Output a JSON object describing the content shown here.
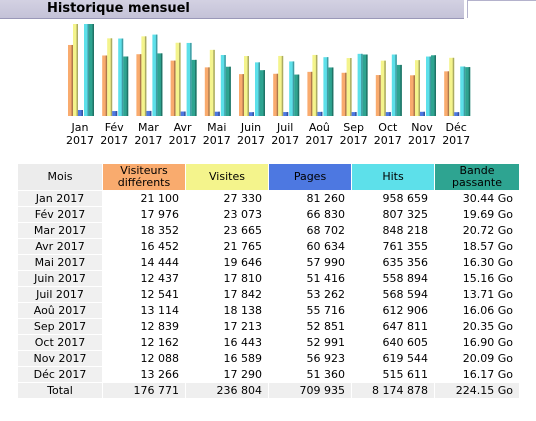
{
  "section_title": "Historique mensuel",
  "colors": {
    "visitors": "#f9ab6e",
    "visits": "#f4f48c",
    "pages": "#4d78e1",
    "hits": "#5de0ea",
    "bandwidth": "#2ea491",
    "header_bg": "#c9c7dc"
  },
  "chart_data": {
    "type": "bar",
    "categories": [
      "Jan 2017",
      "Fév 2017",
      "Mar 2017",
      "Avr 2017",
      "Mai 2017",
      "Juin 2017",
      "Juil 2017",
      "Aoû 2017",
      "Sep 2017",
      "Oct 2017",
      "Nov 2017",
      "Déc 2017"
    ],
    "series": [
      {
        "name": "Visiteurs différents",
        "values": [
          21100,
          17976,
          18352,
          16452,
          14444,
          12437,
          12541,
          13114,
          12839,
          12162,
          12088,
          13266
        ]
      },
      {
        "name": "Visites",
        "values": [
          27330,
          23073,
          23665,
          21765,
          19646,
          17810,
          17842,
          18138,
          17213,
          16443,
          16589,
          17290
        ]
      },
      {
        "name": "Pages",
        "values": [
          81260,
          66830,
          68702,
          60634,
          57990,
          51416,
          53262,
          55716,
          52851,
          52991,
          56923,
          51360
        ]
      },
      {
        "name": "Hits",
        "values": [
          958659,
          807325,
          848218,
          761355,
          635356,
          558894,
          568594,
          612906,
          647811,
          640605,
          619544,
          515611
        ]
      },
      {
        "name": "Bande passante",
        "values": [
          30.44,
          19.69,
          20.72,
          18.57,
          16.3,
          15.16,
          13.71,
          16.06,
          20.35,
          16.9,
          20.09,
          16.17
        ]
      }
    ],
    "title": "",
    "xlabel": "",
    "ylabel": ""
  },
  "table": {
    "headers": [
      "Mois",
      "Visiteurs différents",
      "Visites",
      "Pages",
      "Hits",
      "Bande passante"
    ],
    "rows": [
      [
        "Jan 2017",
        "21 100",
        "27 330",
        "81 260",
        "958 659",
        "30.44 Go"
      ],
      [
        "Fév 2017",
        "17 976",
        "23 073",
        "66 830",
        "807 325",
        "19.69 Go"
      ],
      [
        "Mar 2017",
        "18 352",
        "23 665",
        "68 702",
        "848 218",
        "20.72 Go"
      ],
      [
        "Avr 2017",
        "16 452",
        "21 765",
        "60 634",
        "761 355",
        "18.57 Go"
      ],
      [
        "Mai 2017",
        "14 444",
        "19 646",
        "57 990",
        "635 356",
        "16.30 Go"
      ],
      [
        "Juin 2017",
        "12 437",
        "17 810",
        "51 416",
        "558 894",
        "15.16 Go"
      ],
      [
        "Juil 2017",
        "12 541",
        "17 842",
        "53 262",
        "568 594",
        "13.71 Go"
      ],
      [
        "Aoû 2017",
        "13 114",
        "18 138",
        "55 716",
        "612 906",
        "16.06 Go"
      ],
      [
        "Sep 2017",
        "12 839",
        "17 213",
        "52 851",
        "647 811",
        "20.35 Go"
      ],
      [
        "Oct 2017",
        "12 162",
        "16 443",
        "52 991",
        "640 605",
        "16.90 Go"
      ],
      [
        "Nov 2017",
        "12 088",
        "16 589",
        "56 923",
        "619 544",
        "20.09 Go"
      ],
      [
        "Déc 2017",
        "13 266",
        "17 290",
        "51 360",
        "515 611",
        "16.17 Go"
      ]
    ],
    "total": [
      "Total",
      "176 771",
      "236 804",
      "709 935",
      "8 174 878",
      "224.15 Go"
    ]
  }
}
